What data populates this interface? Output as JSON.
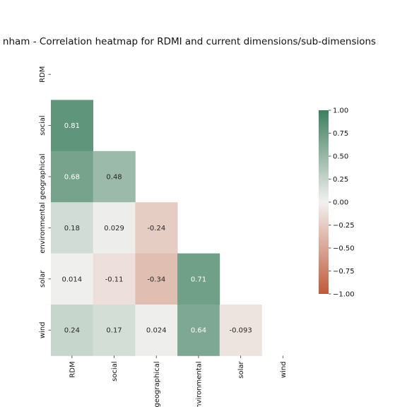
{
  "chart_data": {
    "type": "heatmap",
    "title": "nham - Correlation heatmap for RDMI and current dimensions/sub-dimensions",
    "xlabel": "",
    "ylabel": "",
    "x_categories": [
      "RDM",
      "social",
      "geographical",
      "environmental",
      "solar",
      "wind"
    ],
    "y_categories": [
      "RDM",
      "social",
      "geographical",
      "environmental",
      "solar",
      "wind"
    ],
    "mask": "upper-triangle-including-diagonal",
    "values": [
      [
        null,
        null,
        null,
        null,
        null,
        null
      ],
      [
        0.81,
        null,
        null,
        null,
        null,
        null
      ],
      [
        0.68,
        0.48,
        null,
        null,
        null,
        null
      ],
      [
        0.18,
        0.029,
        -0.24,
        null,
        null,
        null
      ],
      [
        0.014,
        -0.11,
        -0.34,
        0.71,
        null,
        null
      ],
      [
        0.24,
        0.17,
        0.024,
        0.64,
        -0.093,
        null
      ]
    ],
    "value_labels": [
      [
        null,
        null,
        null,
        null,
        null,
        null
      ],
      [
        "0.81",
        null,
        null,
        null,
        null,
        null
      ],
      [
        "0.68",
        "0.48",
        null,
        null,
        null,
        null
      ],
      [
        "0.18",
        "0.029",
        "-0.24",
        null,
        null,
        null
      ],
      [
        "0.014",
        "-0.11",
        "-0.34",
        "0.71",
        null,
        null
      ],
      [
        "0.24",
        "0.17",
        "0.024",
        "0.64",
        "-0.093",
        null
      ]
    ],
    "colorbar": {
      "range": [
        -1.0,
        1.0
      ],
      "ticks": [
        1.0,
        0.75,
        0.5,
        0.25,
        0.0,
        -0.25,
        -0.5,
        -0.75,
        -1.0
      ],
      "tick_labels": [
        "1.00",
        "0.75",
        "0.50",
        "0.25",
        "0.00",
        "−0.25",
        "−0.50",
        "−0.75",
        "−1.00"
      ],
      "colors": {
        "negative": "#c05a3a",
        "neutral": "#f2f1f0",
        "positive": "#3d7f5e"
      }
    },
    "grid": false,
    "legend": "right"
  }
}
